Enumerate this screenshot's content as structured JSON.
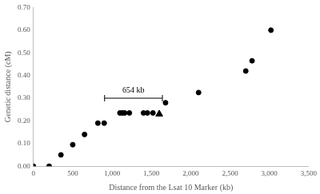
{
  "chart_data": {
    "type": "scatter",
    "x_label": "Distance from the Lsat 10 Marker (kb)",
    "y_label": "Genetic distance (cM)",
    "series": [
      {
        "marker": "circle",
        "color": "#000000",
        "x": [
          0,
          200,
          350,
          500,
          650,
          820,
          900,
          1100,
          1130,
          1160,
          1220,
          1400,
          1450,
          1520,
          1680,
          2100,
          2700,
          2780,
          3020
        ],
        "values": [
          0,
          0,
          0.05,
          0.095,
          0.14,
          0.19,
          0.19,
          0.235,
          0.235,
          0.235,
          0.235,
          0.235,
          0.235,
          0.235,
          0.28,
          0.325,
          0.42,
          0.465,
          0.6
        ]
      },
      {
        "marker": "triangle",
        "color": "#000000",
        "x": [
          1600
        ],
        "values": [
          0.23
        ]
      }
    ],
    "annotations": [
      {
        "text": "654 kb",
        "x": [
          905,
          1640
        ],
        "y": 0.3
      }
    ],
    "xlim": [
      0,
      3500
    ],
    "xticks": [
      0,
      500,
      {
        "value": 1000,
        "label": "1,000"
      },
      {
        "value": 1500,
        "label": "1,500"
      },
      {
        "value": 2000,
        "label": "2,000"
      },
      {
        "value": 2500,
        "label": "2,500"
      },
      {
        "value": 3000,
        "label": "3,000"
      },
      {
        "value": 3500,
        "label": "3,500"
      }
    ],
    "ylim": [
      0,
      0.7
    ],
    "yticks": [
      {
        "value": 0,
        "label": "0.00"
      },
      {
        "value": 0.1,
        "label": "0.10"
      },
      {
        "value": 0.2,
        "label": "0.20"
      },
      {
        "value": 0.3,
        "label": "0.30"
      },
      {
        "value": 0.4,
        "label": "0.40"
      },
      {
        "value": 0.5,
        "label": "0.50"
      },
      {
        "value": 0.6,
        "label": "0.60"
      },
      {
        "value": 0.7,
        "label": "0.70"
      }
    ],
    "grid": false
  }
}
